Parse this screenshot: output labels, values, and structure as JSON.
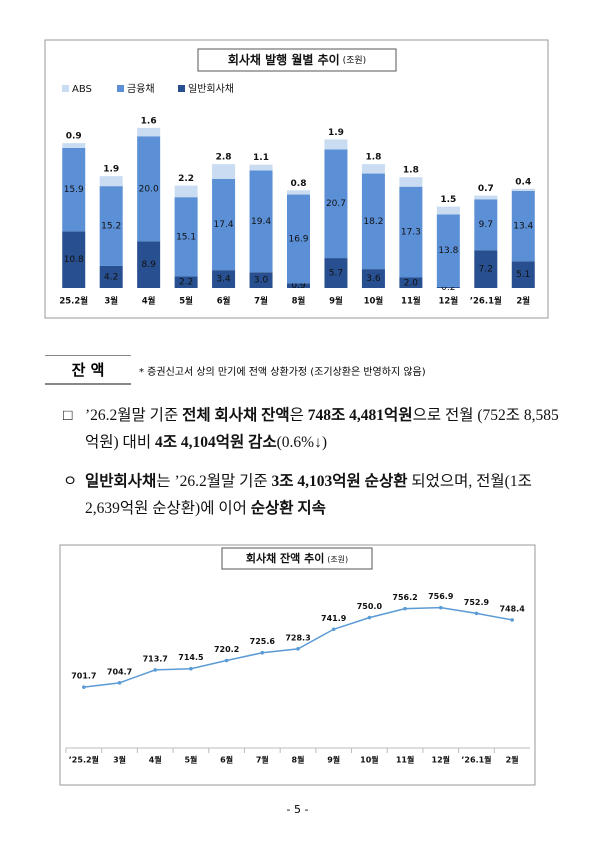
{
  "chart_data": [
    {
      "type": "bar",
      "stacked": true,
      "title": "회사채 발행 월별 추이",
      "subtitle": "(조원)",
      "categories": [
        "25.2월",
        "3월",
        "4월",
        "5월",
        "6월",
        "7월",
        "8월",
        "9월",
        "10월",
        "11월",
        "12월",
        "’26.1월",
        "2월"
      ],
      "series": [
        {
          "name": "일반회사채",
          "color": "#284f8f",
          "values": [
            10.8,
            4.2,
            8.9,
            2.2,
            3.4,
            3.0,
            0.9,
            5.7,
            3.6,
            2.0,
            0.2,
            7.2,
            5.1
          ],
          "value_labels": [
            "10.8",
            "4.2",
            "8.9",
            "2.2",
            "3.4",
            "3.0",
            "0.9",
            "5.7",
            "3.6",
            "2.0",
            "0.2",
            "7.2",
            "5.1"
          ]
        },
        {
          "name": "금융채",
          "color": "#5b8fd6",
          "values": [
            15.9,
            15.2,
            20.0,
            15.1,
            17.4,
            19.4,
            16.9,
            20.7,
            18.2,
            17.3,
            13.8,
            9.7,
            13.4
          ],
          "value_labels": [
            "15.9",
            "15.2",
            "20.0",
            "15.1",
            "17.4",
            "19.4",
            "16.9",
            "20.7",
            "18.2",
            "17.3",
            "13.8",
            "9.7",
            "13.4"
          ]
        },
        {
          "name": "ABS",
          "color": "#c9dcf2",
          "values": [
            0.9,
            1.9,
            1.6,
            2.2,
            2.8,
            1.1,
            0.8,
            1.9,
            1.8,
            1.8,
            1.5,
            0.7,
            0.4
          ],
          "value_labels": [
            "0.9",
            "1.9",
            "1.6",
            "2.2",
            "2.8",
            "1.1",
            "0.8",
            "1.9",
            "1.8",
            "1.8",
            "1.5",
            "0.7",
            "0.4"
          ]
        }
      ],
      "legend_order": [
        "ABS",
        "금융채",
        "일반회사채"
      ],
      "ylim": [
        0,
        32
      ]
    },
    {
      "type": "line",
      "title": "회사채 잔액 추이",
      "subtitle": "(조원)",
      "categories": [
        "’25.2월",
        "3월",
        "4월",
        "5월",
        "6월",
        "7월",
        "8월",
        "9월",
        "10월",
        "11월",
        "12월",
        "’26.1월",
        "2월"
      ],
      "values": [
        701.7,
        704.7,
        713.7,
        714.5,
        720.2,
        725.6,
        728.3,
        741.9,
        750.0,
        756.2,
        756.9,
        752.9,
        748.4
      ],
      "value_labels": [
        "701.7",
        "704.7",
        "713.7",
        "714.5",
        "720.2",
        "725.6",
        "728.3",
        "741.9",
        "750.0",
        "756.2",
        "756.9",
        "752.9",
        "748.4"
      ],
      "color": "#5b9bd5",
      "ylim": [
        665,
        790
      ]
    }
  ],
  "section": {
    "label": "잔 액",
    "note": "* 증권신고서 상의 만기에 전액 상환가정 (조기상환은 반영하지 않음)"
  },
  "paragraphs": [
    {
      "marker": "□",
      "runs": [
        {
          "text": "’26.2월말 기준 "
        },
        {
          "text": "전체 회사채 잔액",
          "bold": true
        },
        {
          "text": "은 "
        },
        {
          "text": "748조 4,481억원",
          "bold": true
        },
        {
          "text": "으로 전월 (752조 8,585억원) 대비 "
        },
        {
          "text": "4조 4,104억원 감소",
          "bold": true
        },
        {
          "text": "(0.6%↓)"
        }
      ]
    },
    {
      "marker": "ㅇ",
      "runs": [
        {
          "text": "일반회사채",
          "bold": true
        },
        {
          "text": "는 ’26.2월말 기준 "
        },
        {
          "text": "3조 4,103억원 순상환",
          "bold": true
        },
        {
          "text": " 되었으며, 전월(1조 2,639억원 순상환)에 이어 "
        },
        {
          "text": "순상환 지속",
          "bold": true
        }
      ]
    }
  ],
  "page_number": "- 5 -"
}
